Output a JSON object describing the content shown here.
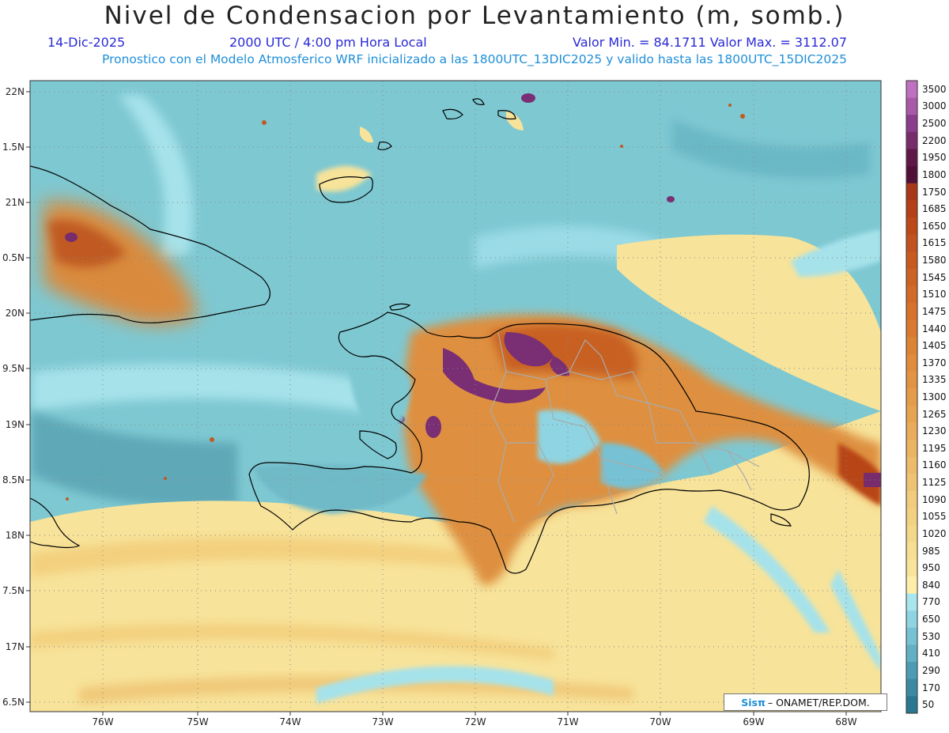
{
  "header": {
    "title": "Nivel de Condensacion por Levantamiento (m, somb.)",
    "date": "14-Dic-2025",
    "time": "2000 UTC / 4:00 pm Hora Local",
    "minmax": "Valor Min. = 84.1711   Valor Max. = 3112.07",
    "forecast": "Pronostico con el Modelo Atmosferico WRF inicializado a las 1800UTC_13DIC2025 y valido hasta las  1800UTC_15DIC2025"
  },
  "map": {
    "lat_labels": [
      "22N",
      "1.5N",
      "21N",
      "0.5N",
      "20N",
      "9.5N",
      "19N",
      "8.5N",
      "18N",
      "7.5N",
      "17N",
      "6.5N"
    ],
    "lon_labels": [
      "76W",
      "75W",
      "74W",
      "73W",
      "72W",
      "71W",
      "70W",
      "69W",
      "68W"
    ],
    "lat_range": [
      16.4,
      22.1
    ],
    "lon_range": [
      -76.6,
      -67.6
    ]
  },
  "colorbar": {
    "labels": [
      "3500",
      "3000",
      "2500",
      "2200",
      "1950",
      "1800",
      "1750",
      "1685",
      "1650",
      "1615",
      "1580",
      "1545",
      "1510",
      "1475",
      "1440",
      "1405",
      "1370",
      "1335",
      "1300",
      "1265",
      "1230",
      "1195",
      "1160",
      "1125",
      "1090",
      "1055",
      "1020",
      "985",
      "950",
      "840",
      "770",
      "650",
      "530",
      "410",
      "290",
      "170",
      "50"
    ],
    "colors": [
      "#c070c0",
      "#a85aa8",
      "#8c3c8c",
      "#782c6c",
      "#601848",
      "#501038",
      "#a83818",
      "#b44018",
      "#bc4a18",
      "#c25220",
      "#c85a20",
      "#cc6224",
      "#d26a28",
      "#d6722c",
      "#da7a30",
      "#dc8436",
      "#e08c3c",
      "#e29444",
      "#e49c4a",
      "#e6a452",
      "#e8ac5a",
      "#eab462",
      "#ecbc6a",
      "#eec474",
      "#f0cc7c",
      "#f2d282",
      "#f4d88a",
      "#f6de92",
      "#f8e49a",
      "#ffeeaa",
      "#a8e6ee",
      "#8ed4e2",
      "#76c2d4",
      "#62b0c4",
      "#4c9cb4",
      "#3c8aa2",
      "#2a7890"
    ]
  },
  "credit": {
    "sis": "Sisπ",
    "text": "– ONAMET/REP.DOM."
  }
}
